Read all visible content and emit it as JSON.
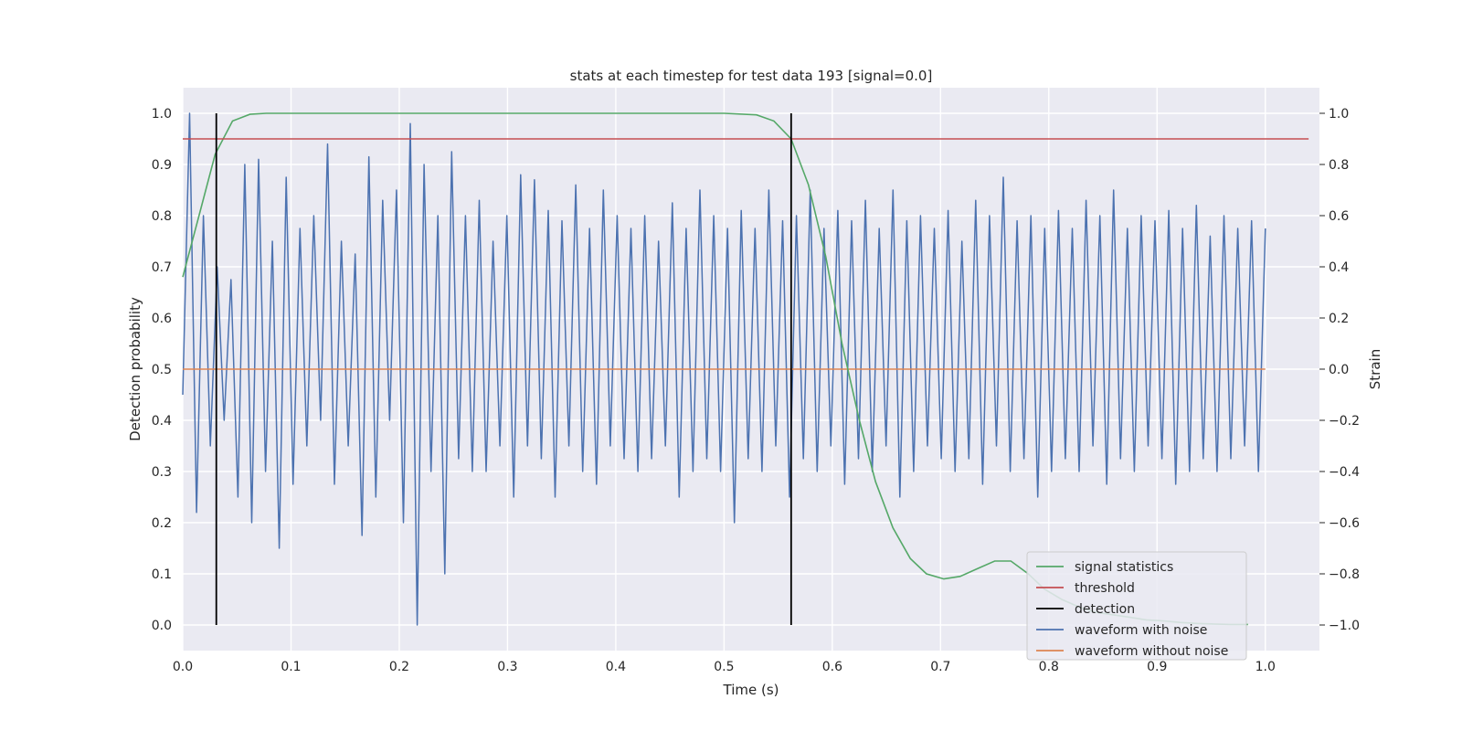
{
  "chart_data": {
    "type": "line",
    "title": "stats at each timestep for test data 193 [signal=0.0]",
    "xlabel": "Time (s)",
    "ylabel_left": "Detection probability",
    "ylabel_right": "Strain",
    "xlim": [
      0.0,
      1.05
    ],
    "ylim_left": [
      -0.05,
      1.05
    ],
    "ylim_right": [
      -1.1,
      1.1
    ],
    "x_ticks": [
      "0.0",
      "0.1",
      "0.2",
      "0.3",
      "0.4",
      "0.5",
      "0.6",
      "0.7",
      "0.8",
      "0.9",
      "1.0"
    ],
    "x_tick_values": [
      0,
      0.1,
      0.2,
      0.3,
      0.4,
      0.5,
      0.6,
      0.7,
      0.8,
      0.9,
      1.0
    ],
    "y_left_ticks": [
      "0.0",
      "0.1",
      "0.2",
      "0.3",
      "0.4",
      "0.5",
      "0.6",
      "0.7",
      "0.8",
      "0.9",
      "1.0"
    ],
    "y_left_tick_values": [
      0,
      0.1,
      0.2,
      0.3,
      0.4,
      0.5,
      0.6,
      0.7,
      0.8,
      0.9,
      1.0
    ],
    "y_right_ticks": [
      "−1.0",
      "−0.8",
      "−0.6",
      "−0.4",
      "−0.2",
      "0.0",
      "0.2",
      "0.4",
      "0.6",
      "0.8",
      "1.0"
    ],
    "y_right_tick_values": [
      -1.0,
      -0.8,
      -0.6,
      -0.4,
      -0.2,
      0.0,
      0.2,
      0.4,
      0.6,
      0.8,
      1.0
    ],
    "grid": true,
    "legend_position": "lower-right",
    "series": [
      {
        "name": "signal statistics",
        "axis": "left",
        "color": "#55a868",
        "x": [
          0.0,
          0.015,
          0.03,
          0.046,
          0.062,
          0.077,
          0.1,
          0.2,
          0.3,
          0.4,
          0.5,
          0.53,
          0.546,
          0.562,
          0.578,
          0.594,
          0.609,
          0.625,
          0.64,
          0.656,
          0.672,
          0.687,
          0.703,
          0.718,
          0.734,
          0.75,
          0.765,
          0.781,
          0.796,
          0.812,
          0.828,
          0.843,
          0.859,
          0.875,
          0.89,
          0.906,
          0.921,
          0.937,
          0.953,
          0.968,
          0.984
        ],
        "y": [
          0.68,
          0.8,
          0.92,
          0.985,
          0.998,
          1.0,
          1.0,
          1.0,
          1.0,
          1.0,
          1.0,
          0.997,
          0.985,
          0.95,
          0.86,
          0.72,
          0.55,
          0.4,
          0.28,
          0.19,
          0.13,
          0.1,
          0.09,
          0.095,
          0.11,
          0.125,
          0.125,
          0.1,
          0.07,
          0.05,
          0.035,
          0.025,
          0.02,
          0.015,
          0.01,
          0.008,
          0.005,
          0.003,
          0.002,
          0.001,
          0.001
        ]
      },
      {
        "name": "threshold",
        "axis": "left",
        "color": "#c44e52",
        "x": [
          0.0,
          1.04
        ],
        "y": [
          0.95,
          0.95
        ]
      },
      {
        "name": "detection",
        "axis": "left",
        "color": "#000000",
        "segments": [
          {
            "x": 0.031,
            "y": [
              0.0,
              1.0
            ]
          },
          {
            "x": 0.562,
            "y": [
              0.0,
              1.0
            ]
          }
        ]
      },
      {
        "name": "waveform with noise",
        "axis": "right",
        "color": "#4c72b0",
        "x_range": [
          0.0,
          1.0
        ],
        "n_points": 1024,
        "y_sampled": [
          -0.1,
          1.0,
          -0.56,
          0.6,
          -0.3,
          0.4,
          -0.2,
          0.35,
          -0.5,
          0.8,
          -0.6,
          0.82,
          -0.4,
          0.5,
          -0.7,
          0.75,
          -0.45,
          0.55,
          -0.3,
          0.6,
          -0.2,
          0.88,
          -0.45,
          0.5,
          -0.3,
          0.45,
          -0.65,
          0.83,
          -0.5,
          0.66,
          -0.2,
          0.7,
          -0.6,
          0.96,
          -1.0,
          0.8,
          -0.4,
          0.6,
          -0.8,
          0.85,
          -0.35,
          0.6,
          -0.4,
          0.66,
          -0.4,
          0.5,
          -0.3,
          0.6,
          -0.5,
          0.76,
          -0.3,
          0.74,
          -0.35,
          0.62,
          -0.5,
          0.58,
          -0.3,
          0.72,
          -0.4,
          0.55,
          -0.45,
          0.7,
          -0.3,
          0.6,
          -0.35,
          0.55,
          -0.4,
          0.6,
          -0.35,
          0.5,
          -0.3,
          0.65,
          -0.5,
          0.55,
          -0.4,
          0.7,
          -0.35,
          0.6,
          -0.4,
          0.55,
          -0.6,
          0.62,
          -0.35,
          0.55,
          -0.4,
          0.7,
          -0.3,
          0.58,
          -0.5,
          0.6,
          -0.35,
          0.7,
          -0.4,
          0.55,
          -0.3,
          0.62,
          -0.45,
          0.58,
          -0.35,
          0.66,
          -0.4,
          0.55,
          -0.3,
          0.7,
          -0.5,
          0.58,
          -0.4,
          0.6,
          -0.3,
          0.55,
          -0.35,
          0.62,
          -0.4,
          0.5,
          -0.35,
          0.66,
          -0.45,
          0.6,
          -0.3,
          0.75,
          -0.4,
          0.58,
          -0.35,
          0.6,
          -0.5,
          0.55,
          -0.4,
          0.62,
          -0.35,
          0.55,
          -0.4,
          0.66,
          -0.3,
          0.6,
          -0.45,
          0.7,
          -0.35,
          0.55,
          -0.4,
          0.6,
          -0.3,
          0.58,
          -0.35,
          0.62,
          -0.45,
          0.55,
          -0.4,
          0.64,
          -0.35,
          0.52,
          -0.4,
          0.6,
          -0.35,
          0.55,
          -0.3,
          0.58,
          -0.4,
          0.55
        ]
      },
      {
        "name": "waveform without noise",
        "axis": "right",
        "color": "#dd8452",
        "x": [
          0.0,
          1.0
        ],
        "y": [
          0.0,
          0.0
        ]
      }
    ]
  }
}
